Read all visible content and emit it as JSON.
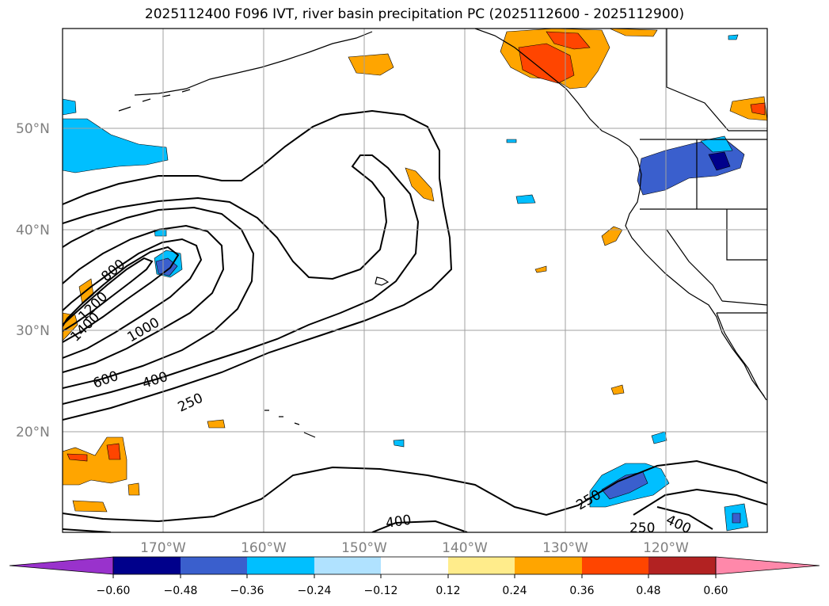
{
  "title": "2025112400 F096 IVT, river basin precipitation PC (2025112600 - 2025112900)",
  "map": {
    "lat_labels": [
      "50°N",
      "40°N",
      "30°N",
      "20°N"
    ],
    "lon_labels": [
      "170°W",
      "160°W",
      "150°W",
      "140°W",
      "130°W",
      "120°W"
    ],
    "contour_labels": [
      "800",
      "1400",
      "1200",
      "1000",
      "600",
      "400",
      "250",
      "400",
      "250",
      "250",
      "400"
    ]
  },
  "colorbar": {
    "ticks": [
      "−0.60",
      "−0.48",
      "−0.36",
      "−0.24",
      "−0.12",
      "0.12",
      "0.24",
      "0.36",
      "0.48",
      "0.60"
    ],
    "colors": [
      "#9932cc",
      "#00008b",
      "#3a5fcd",
      "#00bfff",
      "#b0e2ff",
      "#ffffff",
      "#ffec8b",
      "#ffa500",
      "#ff4500",
      "#b22222",
      "#ff88aa"
    ]
  },
  "legend_colors": {
    "contour": "#000000",
    "grid": "#a0a0a0",
    "coast": "#000000"
  }
}
